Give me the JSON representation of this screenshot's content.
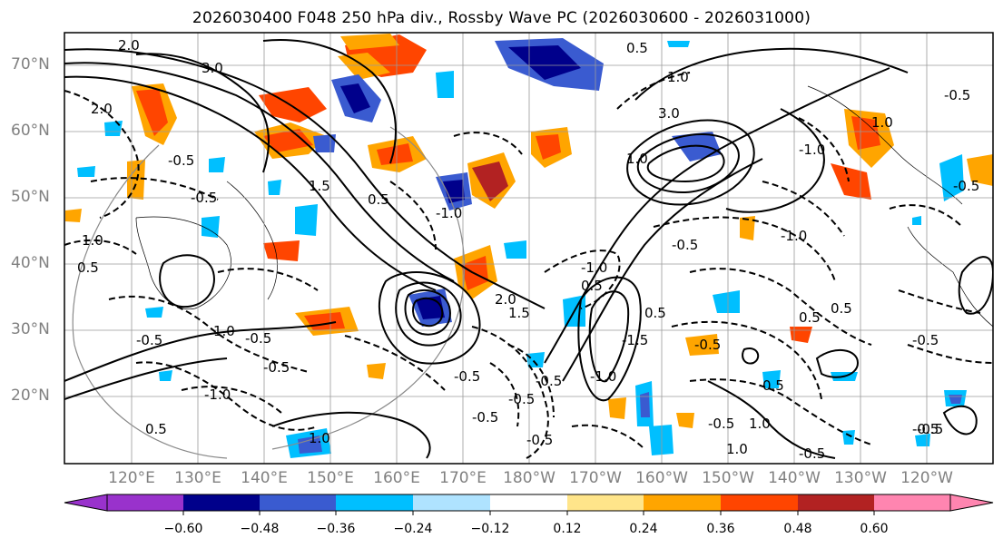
{
  "title": "2026030400 F048 250 hPa div., Rossby Wave PC (2026030600 - 2026031000)",
  "lat_labels": [
    "70°N",
    "60°N",
    "50°N",
    "40°N",
    "30°N",
    "20°N"
  ],
  "lon_labels": [
    "120°E",
    "130°E",
    "140°E",
    "150°E",
    "160°E",
    "170°E",
    "180°W",
    "170°W",
    "160°W",
    "150°W",
    "140°W",
    "130°W",
    "120°W"
  ],
  "colorbar": {
    "ticks": [
      "−0.60",
      "−0.48",
      "−0.36",
      "−0.24",
      "−0.12",
      "0.12",
      "0.24",
      "0.36",
      "0.48",
      "0.60"
    ],
    "colors": [
      "#9932cc",
      "#00008b",
      "#3a5bd0",
      "#00bfff",
      "#afe3ff",
      "#ffffff",
      "#ffe58a",
      "#ffa500",
      "#ff4500",
      "#b22222",
      "#ff85b0"
    ]
  },
  "contour_labels": [
    "2.0",
    "0.5",
    "3.0",
    "-0.5",
    "-0.5",
    "1.5",
    "-1.0",
    "2.0",
    "-0.5",
    "-0.5",
    "0.5",
    "0.5",
    "-0.5",
    "3.0",
    "-0.5",
    "-1.0",
    "2.0",
    "1.5",
    "0.5",
    "-1.5",
    "1.0",
    "-0.5",
    "1.0",
    "-0.5",
    "0.5",
    "-1.0",
    "0.5",
    "-0.5",
    "0.5",
    "-0.5",
    "1.0",
    "-0.5",
    "1.0",
    "-0.5",
    "1.0",
    "-1.0",
    "-1.0",
    "-0.5",
    "-0.5",
    "0.5",
    "-0.5",
    "-0.5",
    "-1.0",
    "-0.5",
    "-0.5",
    "1.0",
    "0.5",
    "1.0",
    "1.0",
    "-0.5"
  ],
  "colors": {
    "frame": "#000000",
    "grid": "#9a9a9a",
    "axis_text": "#808080"
  }
}
